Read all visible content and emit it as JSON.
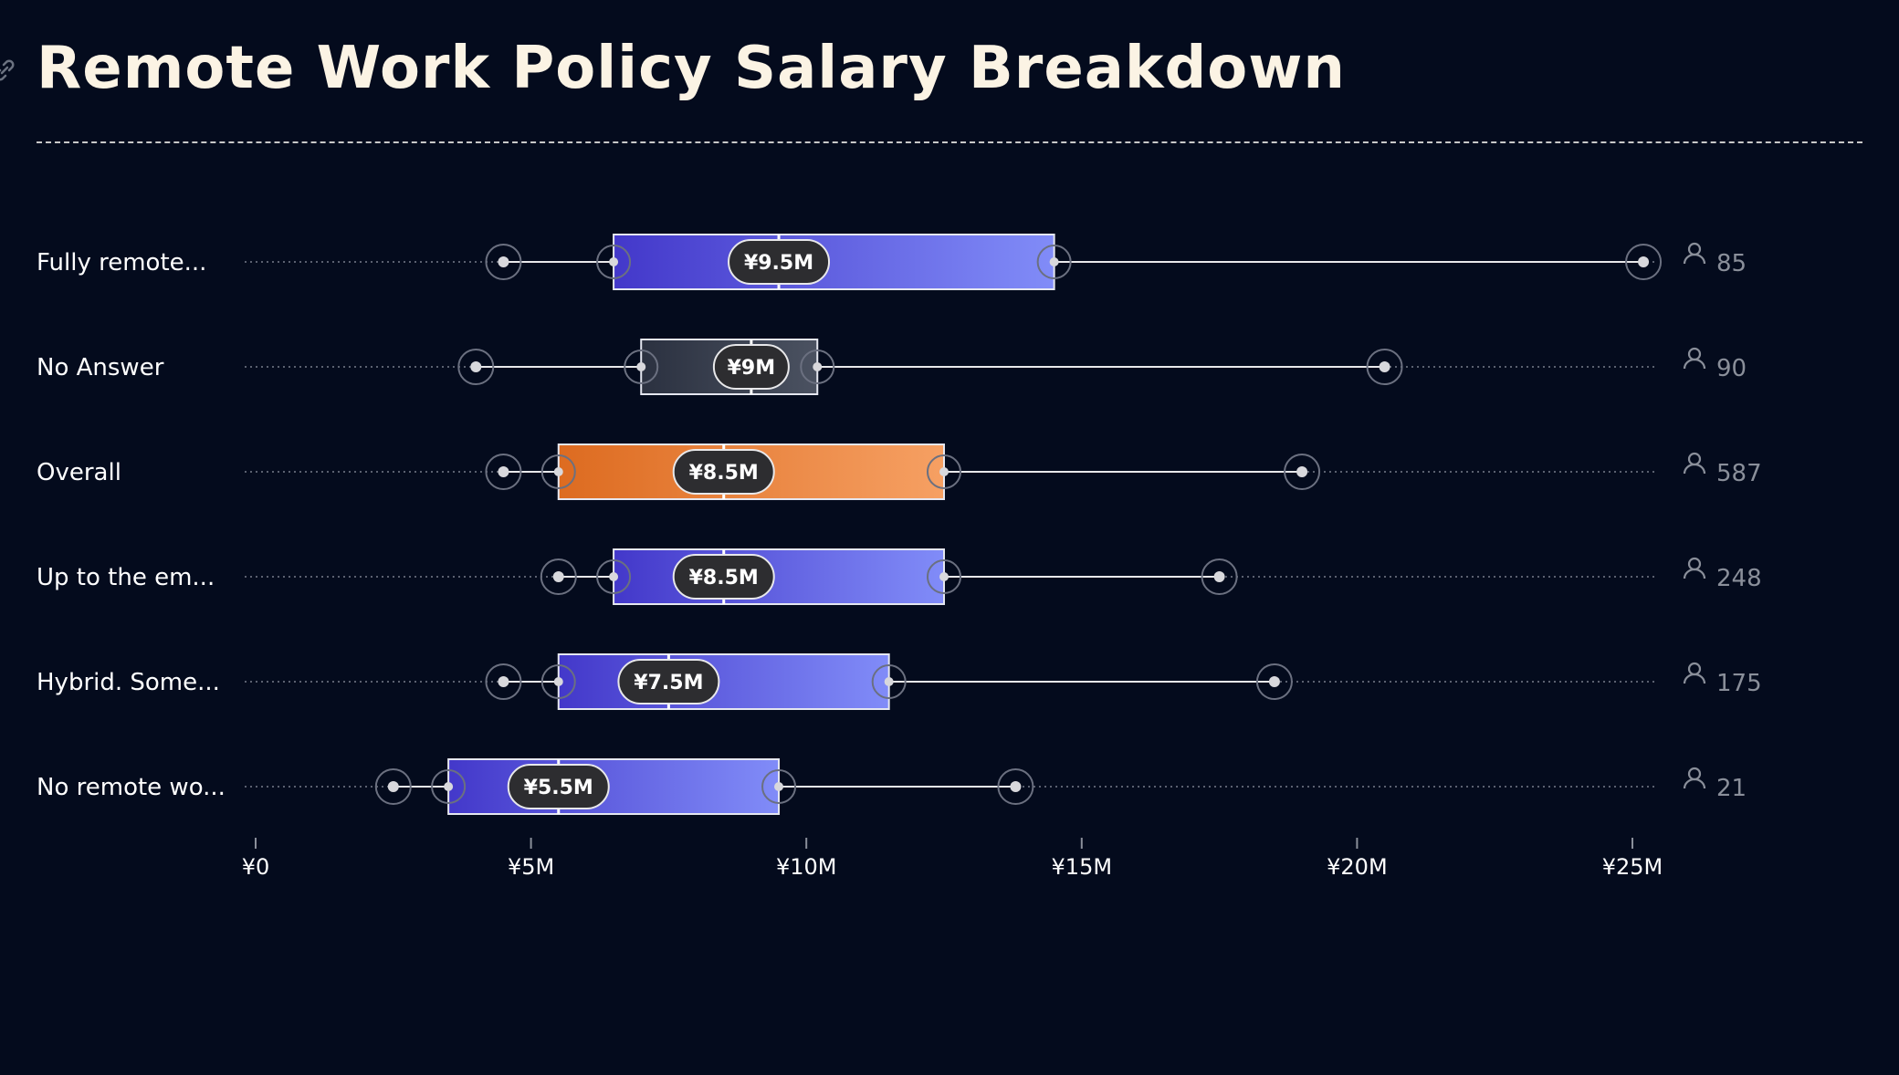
{
  "header": {
    "title": "Remote Work Policy Salary Breakdown"
  },
  "colors": {
    "background": "#040b1d",
    "title": "#fbf3e4",
    "indigo_start": "#4338ca",
    "indigo_end": "#818cf8",
    "gray_start": "#2b3140",
    "gray_end": "#4b5261",
    "orange_start": "#dd6b20",
    "orange_end": "#f6a063",
    "count": "#8a8f9a"
  },
  "chart_data": {
    "type": "box",
    "orientation": "horizontal",
    "xlim": [
      0,
      25000000
    ],
    "x_ticks": [
      {
        "value": 0,
        "label": "¥0"
      },
      {
        "value": 5000000,
        "label": "¥5M"
      },
      {
        "value": 10000000,
        "label": "¥10M"
      },
      {
        "value": 15000000,
        "label": "¥15M"
      },
      {
        "value": 20000000,
        "label": "¥20M"
      },
      {
        "value": 25000000,
        "label": "¥25M"
      }
    ],
    "count_icon": "person-icon",
    "rows": [
      {
        "label": "Fully remote...",
        "min": 4500000,
        "q1": 6500000,
        "median": 9500000,
        "q3": 14500000,
        "max": 25200000,
        "median_label": "¥9.5M",
        "count": "85",
        "style": "indigo"
      },
      {
        "label": "No Answer",
        "min": 4000000,
        "q1": 7000000,
        "median": 9000000,
        "q3": 10200000,
        "max": 20500000,
        "median_label": "¥9M",
        "count": "90",
        "style": "gray"
      },
      {
        "label": "Overall",
        "min": 4500000,
        "q1": 5500000,
        "median": 8500000,
        "q3": 12500000,
        "max": 19000000,
        "median_label": "¥8.5M",
        "count": "587",
        "style": "orange"
      },
      {
        "label": "Up to the em...",
        "min": 5500000,
        "q1": 6500000,
        "median": 8500000,
        "q3": 12500000,
        "max": 17500000,
        "median_label": "¥8.5M",
        "count": "248",
        "style": "indigo"
      },
      {
        "label": "Hybrid. Some...",
        "min": 4500000,
        "q1": 5500000,
        "median": 7500000,
        "q3": 11500000,
        "max": 18500000,
        "median_label": "¥7.5M",
        "count": "175",
        "style": "indigo"
      },
      {
        "label": "No remote wo...",
        "min": 2500000,
        "q1": 3500000,
        "median": 5500000,
        "q3": 9500000,
        "max": 13800000,
        "median_label": "¥5.5M",
        "count": "21",
        "style": "indigo"
      }
    ]
  }
}
